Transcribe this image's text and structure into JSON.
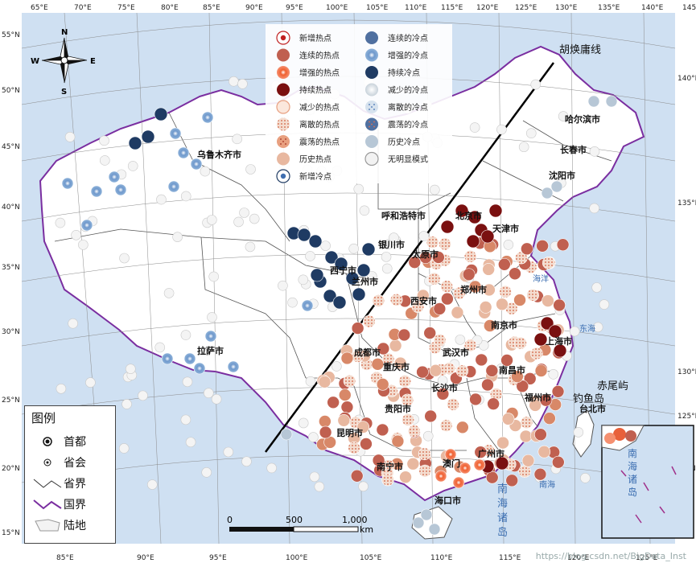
{
  "map": {
    "lon_labels_top": [
      "65°E",
      "70°E",
      "75°E",
      "80°E",
      "85°E",
      "90°E",
      "95°E",
      "100°E",
      "105°E",
      "110°E",
      "115°E",
      "120°E",
      "125°E",
      "130°E",
      "135°E",
      "140°E",
      "145°E"
    ],
    "lon_labels_bottom": [
      "85°E",
      "90°E",
      "95°E",
      "100°E",
      "105°E",
      "110°E",
      "115°E",
      "120°E",
      "125°E"
    ],
    "lat_labels_left": [
      "55°N",
      "50°N",
      "45°N",
      "40°N",
      "35°N",
      "30°N",
      "25°N",
      "20°N",
      "15°N"
    ],
    "lat_labels_right": [
      "140°E",
      "135°E",
      "130°E",
      "125°E",
      "20°N"
    ],
    "north_arrow": {
      "n": "N",
      "e": "E",
      "s": "S",
      "w": "W"
    },
    "hu_line_label": "胡焕庸线",
    "cities": [
      {
        "name": "乌鲁木齐市"
      },
      {
        "name": "哈尔滨市"
      },
      {
        "name": "长春市"
      },
      {
        "name": "沈阳市"
      },
      {
        "name": "呼和浩特市"
      },
      {
        "name": "北京市"
      },
      {
        "name": "天津市"
      },
      {
        "name": "银川市"
      },
      {
        "name": "太原市"
      },
      {
        "name": "西宁市"
      },
      {
        "name": "兰州市"
      },
      {
        "name": "郑州市"
      },
      {
        "name": "西安市"
      },
      {
        "name": "南京市"
      },
      {
        "name": "上海市"
      },
      {
        "name": "拉萨市"
      },
      {
        "name": "成都市"
      },
      {
        "name": "武汉市"
      },
      {
        "name": "重庆市"
      },
      {
        "name": "南昌市"
      },
      {
        "name": "长沙市"
      },
      {
        "name": "福州市"
      },
      {
        "name": "贵阳市"
      },
      {
        "name": "台北市"
      },
      {
        "name": "昆明市"
      },
      {
        "name": "广州市"
      },
      {
        "name": "澳门"
      },
      {
        "name": "南宁市"
      },
      {
        "name": "海口市"
      }
    ],
    "seas": [
      "海洋",
      "东海",
      "南海",
      "钓鱼岛",
      "赤尾屿"
    ],
    "inset_labels": [
      "南",
      "海",
      "诸",
      "岛"
    ],
    "scale": {
      "ticks": [
        "0",
        "500",
        "1,000"
      ],
      "unit": "km"
    },
    "watermark": "https://blog.csdn.net/BigData_Inst"
  },
  "hotspot_legend": {
    "left": [
      "新增热点",
      "连续的热点",
      "增强的热点",
      "持续热点",
      "减少的热点",
      "离散的热点",
      "震荡的热点",
      "历史热点",
      "新增冷点"
    ],
    "right": [
      "连续的冷点",
      "增强的冷点",
      "持续冷点",
      "减少的冷点",
      "离散的冷点",
      "震荡的冷点",
      "历史冷点",
      "无明显模式"
    ],
    "colors": {
      "hot_persist": "#7a1010",
      "hot_consec": "#c06050",
      "hot_intens": "#e8603a",
      "hot_hist": "#e8b8a0",
      "cold_persist": "#1f3b63",
      "cold_consec": "#5070a0",
      "cold_intens": "#5a8ac8",
      "cold_hist": "#b7c7d6",
      "none": "#f2f2f2"
    }
  },
  "legend": {
    "title": "图例",
    "items": [
      "首都",
      "省会",
      "省界",
      "国界",
      "陆地"
    ]
  }
}
